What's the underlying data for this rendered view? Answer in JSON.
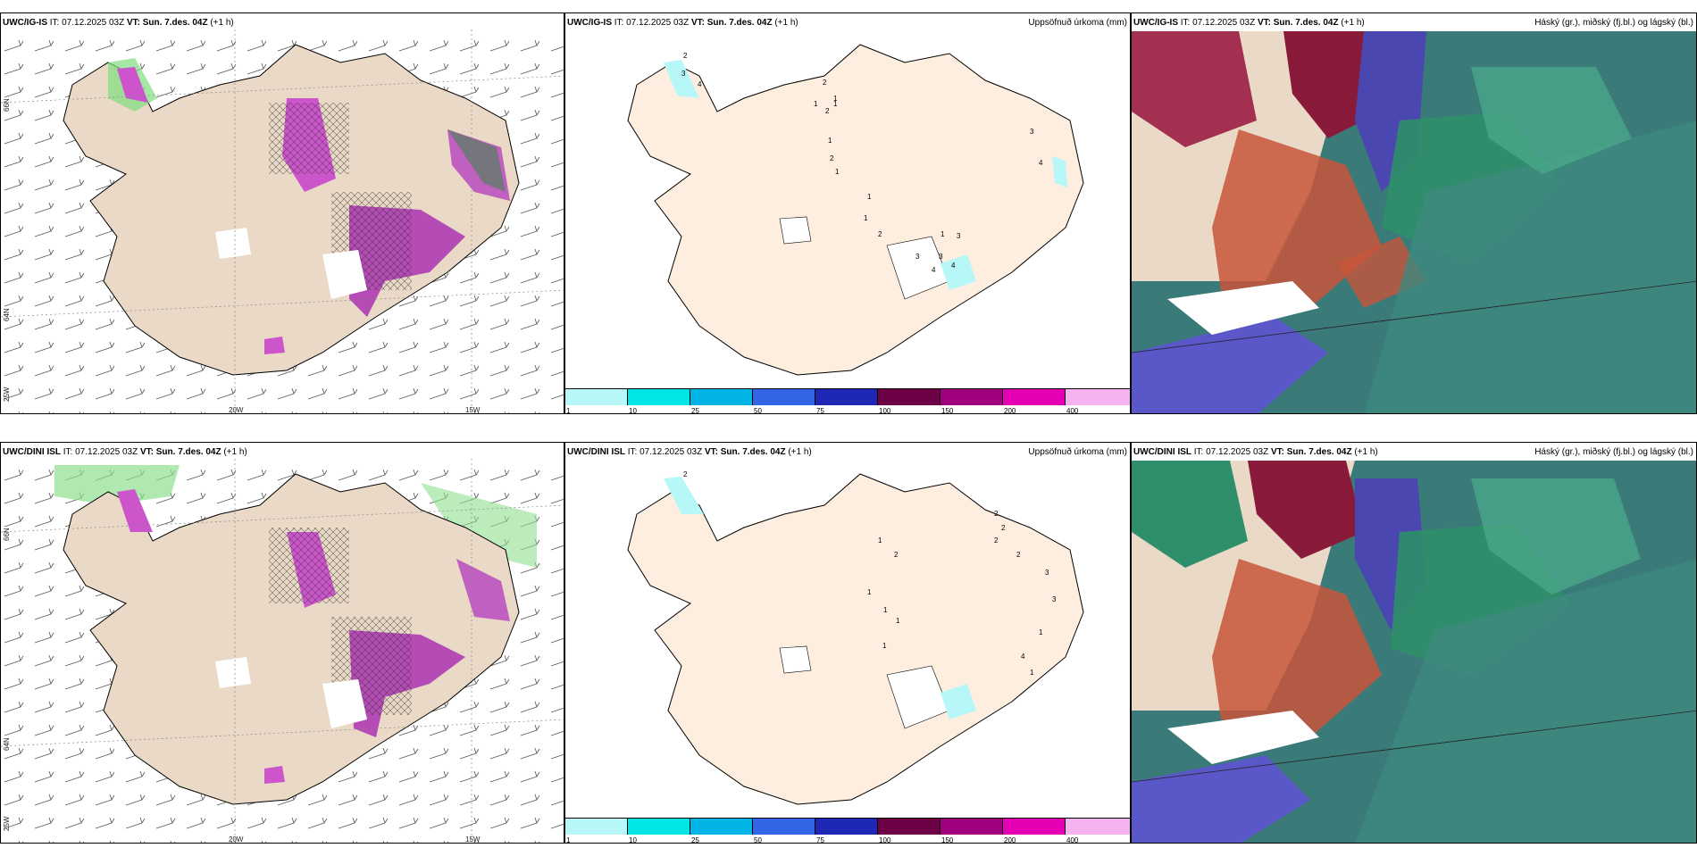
{
  "rows": [
    {
      "model": "UWC/IG-IS",
      "it_label": "IT:",
      "it_value": "07.12.2025 03Z",
      "vt_label": "VT:",
      "vt_value": "Sun. 7.des. 04Z",
      "lead": "(+1 h)"
    },
    {
      "model": "UWC/DINI ISL",
      "it_label": "IT:",
      "it_value": "07.12.2025 03Z",
      "vt_label": "VT:",
      "vt_value": "Sun. 7.des. 04Z",
      "lead": "(+1 h)"
    }
  ],
  "panel_titles": {
    "precip": "Uppsöfnuð úrkoma (mm)",
    "clouds": "Háský (gr.), miðský (fj.bl.) og lágský (bl.)"
  },
  "axis_labels": {
    "lon_20w": "20W",
    "lon_15w": "15W",
    "lon_25w": "25W",
    "lat_66n": "66N",
    "lat_64n": "64N"
  },
  "colorbar": {
    "labels": [
      "1",
      "10",
      "25",
      "50",
      "75",
      "100",
      "150",
      "200",
      "400"
    ],
    "colors": [
      "#b7f7f7",
      "#00e6e6",
      "#00b4e6",
      "#3264e6",
      "#1e28b4",
      "#6e0046",
      "#a0007d",
      "#e600b4",
      "#f5b4f0"
    ]
  },
  "precip_points_top": [
    "2",
    "3",
    "4",
    "2",
    "1",
    "2",
    "1",
    "1",
    "1",
    "2",
    "1",
    "1",
    "1",
    "2",
    "3",
    "3",
    "4",
    "4",
    "1",
    "3",
    "3",
    "4"
  ],
  "precip_points_bottom": [
    "2",
    "1",
    "2",
    "1",
    "1",
    "1",
    "1",
    "2",
    "2",
    "2",
    "2",
    "3",
    "3",
    "1",
    "4",
    "1"
  ]
}
